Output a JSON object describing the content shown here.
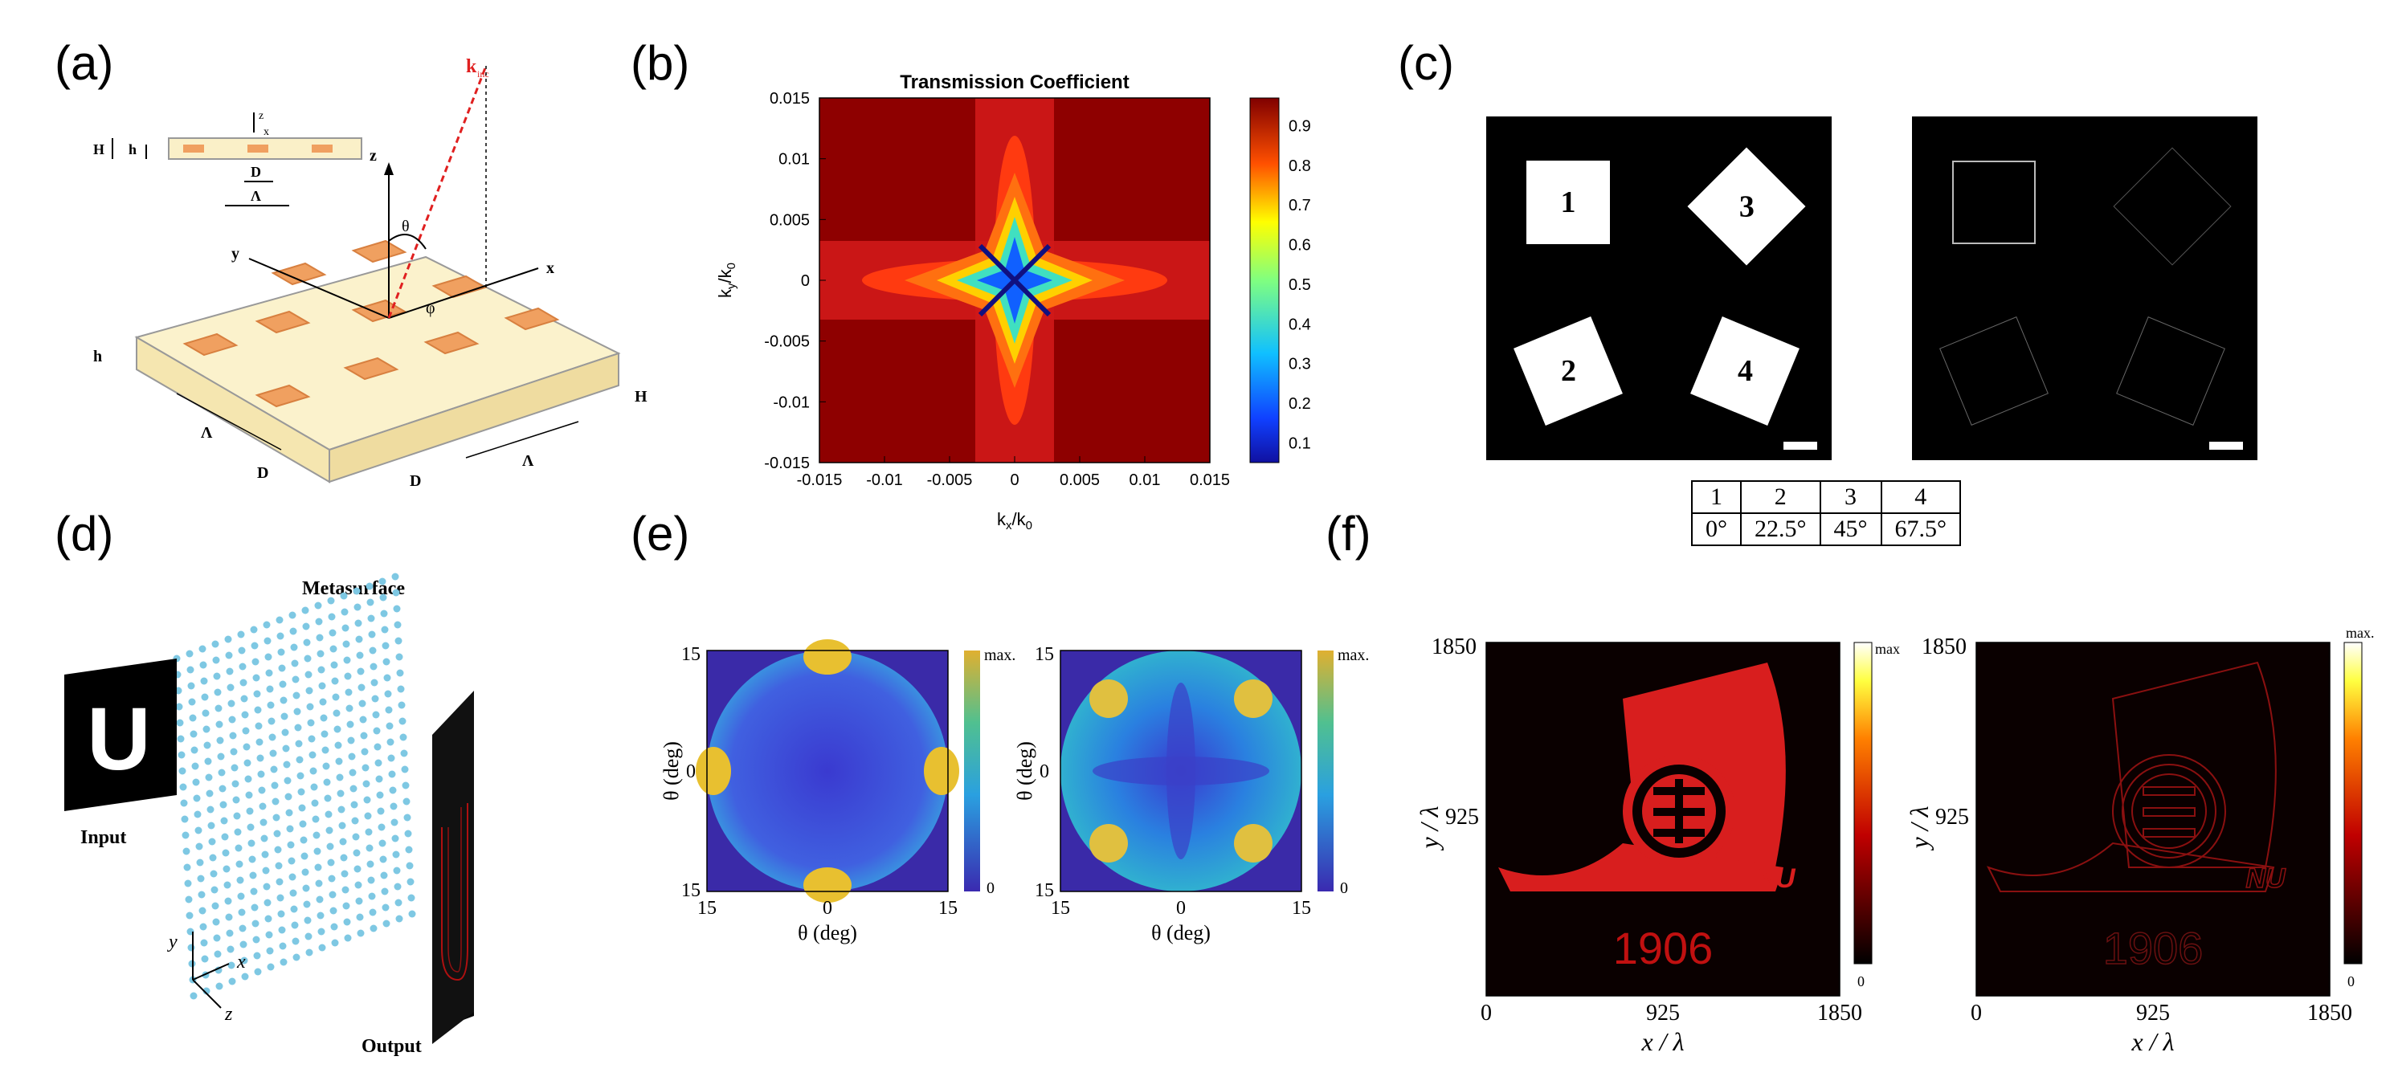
{
  "panels": {
    "a": {
      "label": "(a)",
      "labels": {
        "kinc": "k",
        "kinc_sub": "inc",
        "z": "z",
        "x": "x",
        "y": "y",
        "theta": "θ",
        "phi": "φ",
        "H": "H",
        "h": "h",
        "D": "D",
        "Lambda": "Λ"
      }
    },
    "b": {
      "label": "(b)"
    },
    "c": {
      "label": "(c)",
      "numbers": [
        "1",
        "2",
        "3",
        "4"
      ],
      "table": {
        "ids": [
          "1",
          "2",
          "3",
          "4"
        ],
        "angles": [
          "0°",
          "22.5°",
          "45°",
          "67.5°"
        ]
      }
    },
    "d": {
      "label": "(d)",
      "metasurface": "Metasurface",
      "input": "Input",
      "output": "Output",
      "input_letter": "U",
      "axes": {
        "y": "y",
        "x": "x",
        "z": "z"
      }
    },
    "e": {
      "label": "(e)",
      "left": {
        "xlabel": "θ (deg)",
        "ylabel": "θ (deg)",
        "cbar_max": "max.",
        "cbar_min": "0",
        "xticks": [
          "15",
          "0",
          "15"
        ],
        "yticks": [
          "15",
          "0",
          "15"
        ]
      },
      "right": {
        "xlabel": "θ (deg)",
        "ylabel": "θ (deg)",
        "cbar_max": "max.",
        "cbar_min": "0",
        "xticks": [
          "15",
          "0",
          "15"
        ],
        "yticks": [
          "15",
          "0",
          "15"
        ]
      }
    },
    "f": {
      "label": "(f)",
      "left": {
        "xlabel": "x / λ",
        "ylabel": "y / λ",
        "cbar_max": "max",
        "cbar_min": "0",
        "xticks": [
          "0",
          "925",
          "1850"
        ],
        "yticks": [
          "1850",
          "925"
        ],
        "year": "1906",
        "logo_text": "NU"
      },
      "right": {
        "xlabel": "x / λ",
        "ylabel": "y / λ",
        "cbar_max": "max.",
        "cbar_min": "0",
        "xticks": [
          "0",
          "925",
          "1850"
        ],
        "yticks": [
          "1850",
          "925"
        ],
        "year": "1906",
        "logo_text": "NU"
      }
    }
  },
  "chart_data": {
    "type": "heatmap",
    "title": "Transmission Coefficient",
    "xlabel": "kx/k0",
    "ylabel": "ky/k0",
    "xlabel_main": "k",
    "xlabel_sub1": "x",
    "xlabel_mid": "/k",
    "xlabel_sub2": "0",
    "ylabel_main": "k",
    "ylabel_sub1": "y",
    "ylabel_mid": "/k",
    "ylabel_sub2": "0",
    "xlim": [
      -0.015,
      0.015
    ],
    "ylim": [
      -0.015,
      0.015
    ],
    "xticks": [
      "-0.015",
      "-0.01",
      "-0.005",
      "0",
      "0.005",
      "0.01",
      "0.015"
    ],
    "yticks": [
      "0.015",
      "0.01",
      "0.005",
      "0",
      "-0.005",
      "-0.01",
      "-0.015"
    ],
    "colorbar_ticks": [
      "0.9",
      "0.8",
      "0.7",
      "0.6",
      "0.5",
      "0.4",
      "0.3",
      "0.2",
      "0.1"
    ],
    "colorbar_range": [
      0.05,
      0.97
    ],
    "colormap": "jet",
    "description_values": {
      "center": 0.05,
      "edges": 0.97
    }
  }
}
